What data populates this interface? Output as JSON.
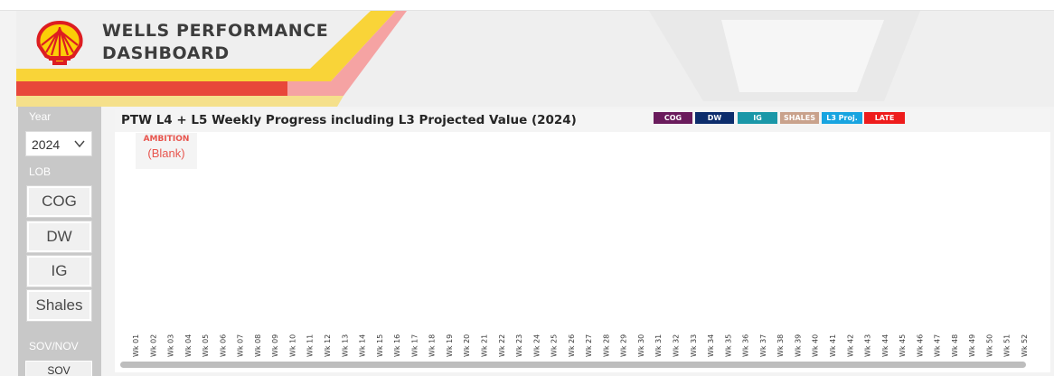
{
  "app": {
    "title_line1": "WELLS PERFORMANCE",
    "title_line2": "DASHBOARD",
    "logo_icon": "shell-pecten-logo"
  },
  "colors": {
    "logo_red": "#dd1d21",
    "logo_yellow": "#fbce07",
    "stripe_red": "#e8473a",
    "stripe_yellow": "#f9d438",
    "stripe_pink": "#f5a3a3",
    "ambition_red": "#e8554e"
  },
  "filters": {
    "year_label": "Year",
    "year_value": "2024",
    "lob_label": "LOB",
    "lob_buttons": [
      "COG",
      "DW",
      "IG",
      "Shales"
    ],
    "sov_label": "SOV/NOV",
    "sov_button": "SOV"
  },
  "chart": {
    "title": "PTW L4 + L5 Weekly Progress including L3 Projected Value (2024)",
    "legend": [
      {
        "label": "COG",
        "color": "#6a1b5c"
      },
      {
        "label": "DW",
        "color": "#0d2d6c"
      },
      {
        "label": "IG",
        "color": "#1a97a8"
      },
      {
        "label": "SHALES",
        "color": "#c9a28c"
      },
      {
        "label": "L3 Proj.",
        "color": "#18a4e0"
      },
      {
        "label": "LATE",
        "color": "#ee1c1c"
      }
    ],
    "ambition_label": "AMBITION",
    "ambition_value": "(Blank)"
  },
  "chart_data": {
    "type": "bar",
    "categories": [
      "Wk 01",
      "Wk 02",
      "Wk 03",
      "Wk 04",
      "Wk 05",
      "Wk 06",
      "Wk 07",
      "Wk 08",
      "Wk 09",
      "Wk 10",
      "Wk 11",
      "Wk 12",
      "Wk 13",
      "Wk 14",
      "Wk 15",
      "Wk 16",
      "Wk 17",
      "Wk 18",
      "Wk 19",
      "Wk 20",
      "Wk 21",
      "Wk 22",
      "Wk 23",
      "Wk 24",
      "Wk 25",
      "Wk 26",
      "Wk 27",
      "Wk 28",
      "Wk 29",
      "Wk 30",
      "Wk 31",
      "Wk 32",
      "Wk 33",
      "Wk 34",
      "Wk 35",
      "Wk 36",
      "Wk 37",
      "Wk 38",
      "Wk 39",
      "Wk 40",
      "Wk 41",
      "Wk 42",
      "Wk 43",
      "Wk 44",
      "Wk 45",
      "Wk 46",
      "Wk 47",
      "Wk 48",
      "Wk 49",
      "Wk 50",
      "Wk 51",
      "Wk 52"
    ],
    "series": [],
    "title": "PTW L4 + L5 Weekly Progress including L3 Projected Value (2024)",
    "xlabel": "",
    "ylabel": "",
    "grid": false,
    "legend_position": "top-right"
  }
}
